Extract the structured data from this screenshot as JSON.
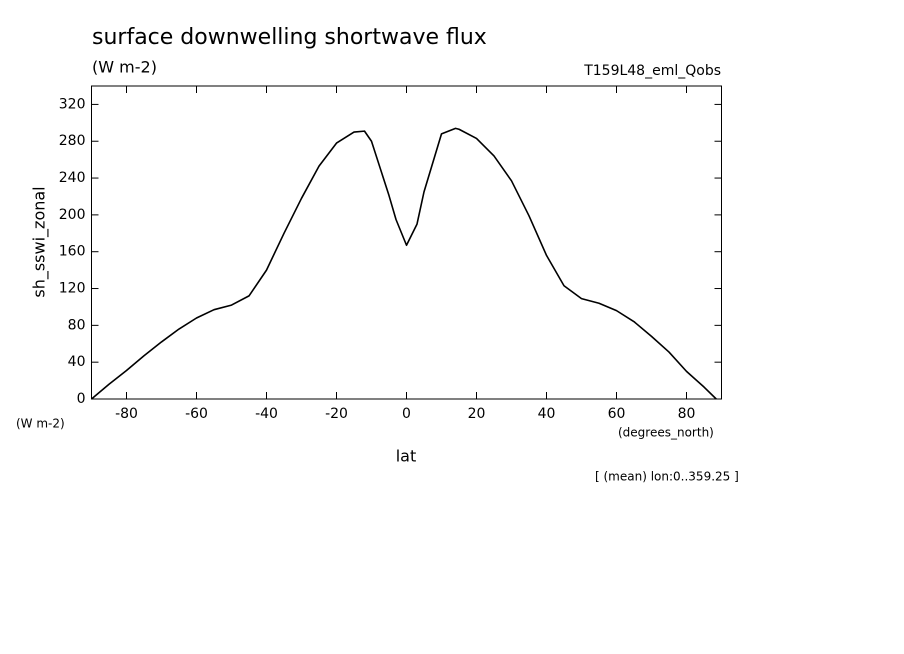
{
  "chart_data": {
    "type": "line",
    "title": "surface downwelling shortwave flux",
    "units": "(W m-2)",
    "dataset": "T159L48_eml_Qobs",
    "y_label": "sh_sswi_zonal",
    "y_units": "(W m-2)",
    "x_label": "lat",
    "x_units": "(degrees_north)",
    "note": "[ (mean) lon:0..359.25 ]",
    "x": [
      -90,
      -85,
      -80,
      -75,
      -70,
      -65,
      -60,
      -55,
      -50,
      -45,
      -40,
      -35,
      -30,
      -25,
      -20,
      -15,
      -12,
      -10,
      -5,
      -3,
      0,
      3,
      5,
      10,
      14,
      15,
      20,
      25,
      30,
      35,
      40,
      45,
      50,
      55,
      60,
      65,
      70,
      75,
      80,
      85,
      88.5
    ],
    "series": [
      {
        "color": "#000000",
        "values": [
          0,
          16,
          31,
          47,
          62,
          76,
          88,
          97,
          102,
          112,
          140,
          180,
          218,
          253,
          278,
          290,
          291,
          280,
          221,
          195,
          167,
          190,
          225,
          288,
          294,
          293,
          283,
          264,
          237,
          199,
          156,
          123,
          109,
          104,
          96,
          84,
          68,
          51,
          30,
          13,
          0
        ]
      }
    ],
    "xlim": [
      -90,
      90
    ],
    "ylim": [
      0,
      340
    ],
    "xticks": [
      -80,
      -60,
      -40,
      -20,
      0,
      20,
      40,
      60,
      80
    ],
    "yticks": [
      0,
      40,
      80,
      120,
      160,
      200,
      240,
      280,
      320
    ]
  }
}
